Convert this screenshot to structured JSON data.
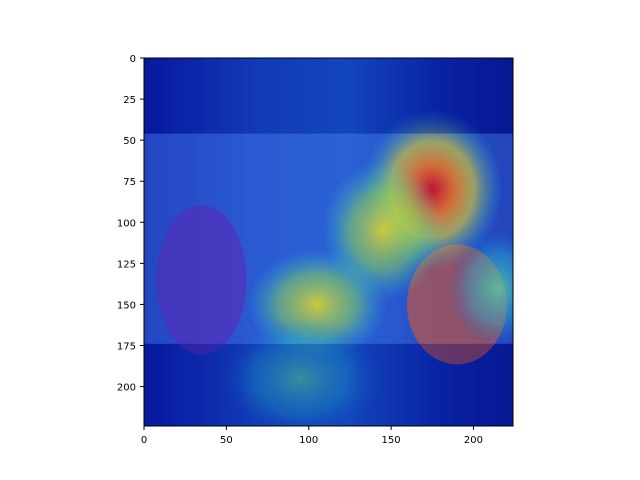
{
  "chart_data": {
    "type": "heatmap",
    "description_of_overlay": "",
    "x_ticks": [
      0,
      50,
      100,
      150,
      200
    ],
    "y_ticks": [
      0,
      25,
      50,
      75,
      100,
      125,
      150,
      175,
      200
    ],
    "xlim": [
      0,
      224
    ],
    "ylim": [
      224,
      0
    ],
    "image_extent": {
      "photo_y_start": 46,
      "photo_y_end": 174
    },
    "colormap": "jet",
    "hotspots": [
      {
        "label": "",
        "cx": 175,
        "cy": 80,
        "intensity": 1.0
      },
      {
        "label": "",
        "cx": 145,
        "cy": 105,
        "intensity": 0.75
      },
      {
        "label": "",
        "cx": 105,
        "cy": 150,
        "intensity": 0.7
      },
      {
        "label": "",
        "cx": 95,
        "cy": 195,
        "intensity": 0.45
      },
      {
        "label": "",
        "cx": 215,
        "cy": 140,
        "intensity": 0.45
      }
    ],
    "grid": false,
    "title": "",
    "xlabel": "",
    "ylabel": ""
  },
  "colors": {
    "deep_blue": "#00008f",
    "blue": "#0022cc",
    "cyan": "#22c8d8",
    "yellow": "#e8d828",
    "orange": "#f07020",
    "red": "#d01028"
  }
}
